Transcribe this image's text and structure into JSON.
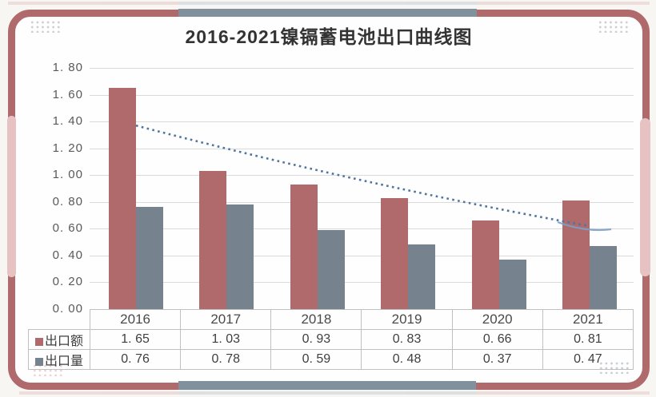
{
  "title": "2016-2021镍镉蓄电池出口曲线图",
  "colors": {
    "maroon": "#b16a6c",
    "slate_bar": "#76838f",
    "ribbon_gray": "#81909d",
    "accent_pink": "#e6c3c2",
    "trendline_blue": "#4e74a0",
    "trend_tail_blue": "#7ba0c6",
    "gridline": "#dadada",
    "table_border": "#c0c0c0",
    "card_background": "#fefefe",
    "page_background": "#f7f6f3",
    "axis_text": "#595959",
    "table_text": "#3f3f3f",
    "title_text": "#333333"
  },
  "chart_data": {
    "type": "bar",
    "title": "2016-2021镍镉蓄电池出口曲线图",
    "categories": [
      "2016",
      "2017",
      "2018",
      "2019",
      "2020",
      "2021"
    ],
    "series": [
      {
        "name": "出口额",
        "key": "export-value",
        "color": "#b16a6c",
        "values": [
          1.65,
          1.03,
          0.93,
          0.83,
          0.66,
          0.81
        ]
      },
      {
        "name": "出口量",
        "key": "export-volume",
        "color": "#76838f",
        "values": [
          0.76,
          0.78,
          0.59,
          0.48,
          0.37,
          0.47
        ]
      }
    ],
    "trendline": {
      "style": "dotted",
      "color": "#4e74a0",
      "start_value": 1.37,
      "end_value": 0.62
    },
    "ylim": [
      0,
      1.8
    ],
    "ytick_step": 0.2,
    "grid": true,
    "legend_position": "table-left",
    "data_table_shown": true
  }
}
